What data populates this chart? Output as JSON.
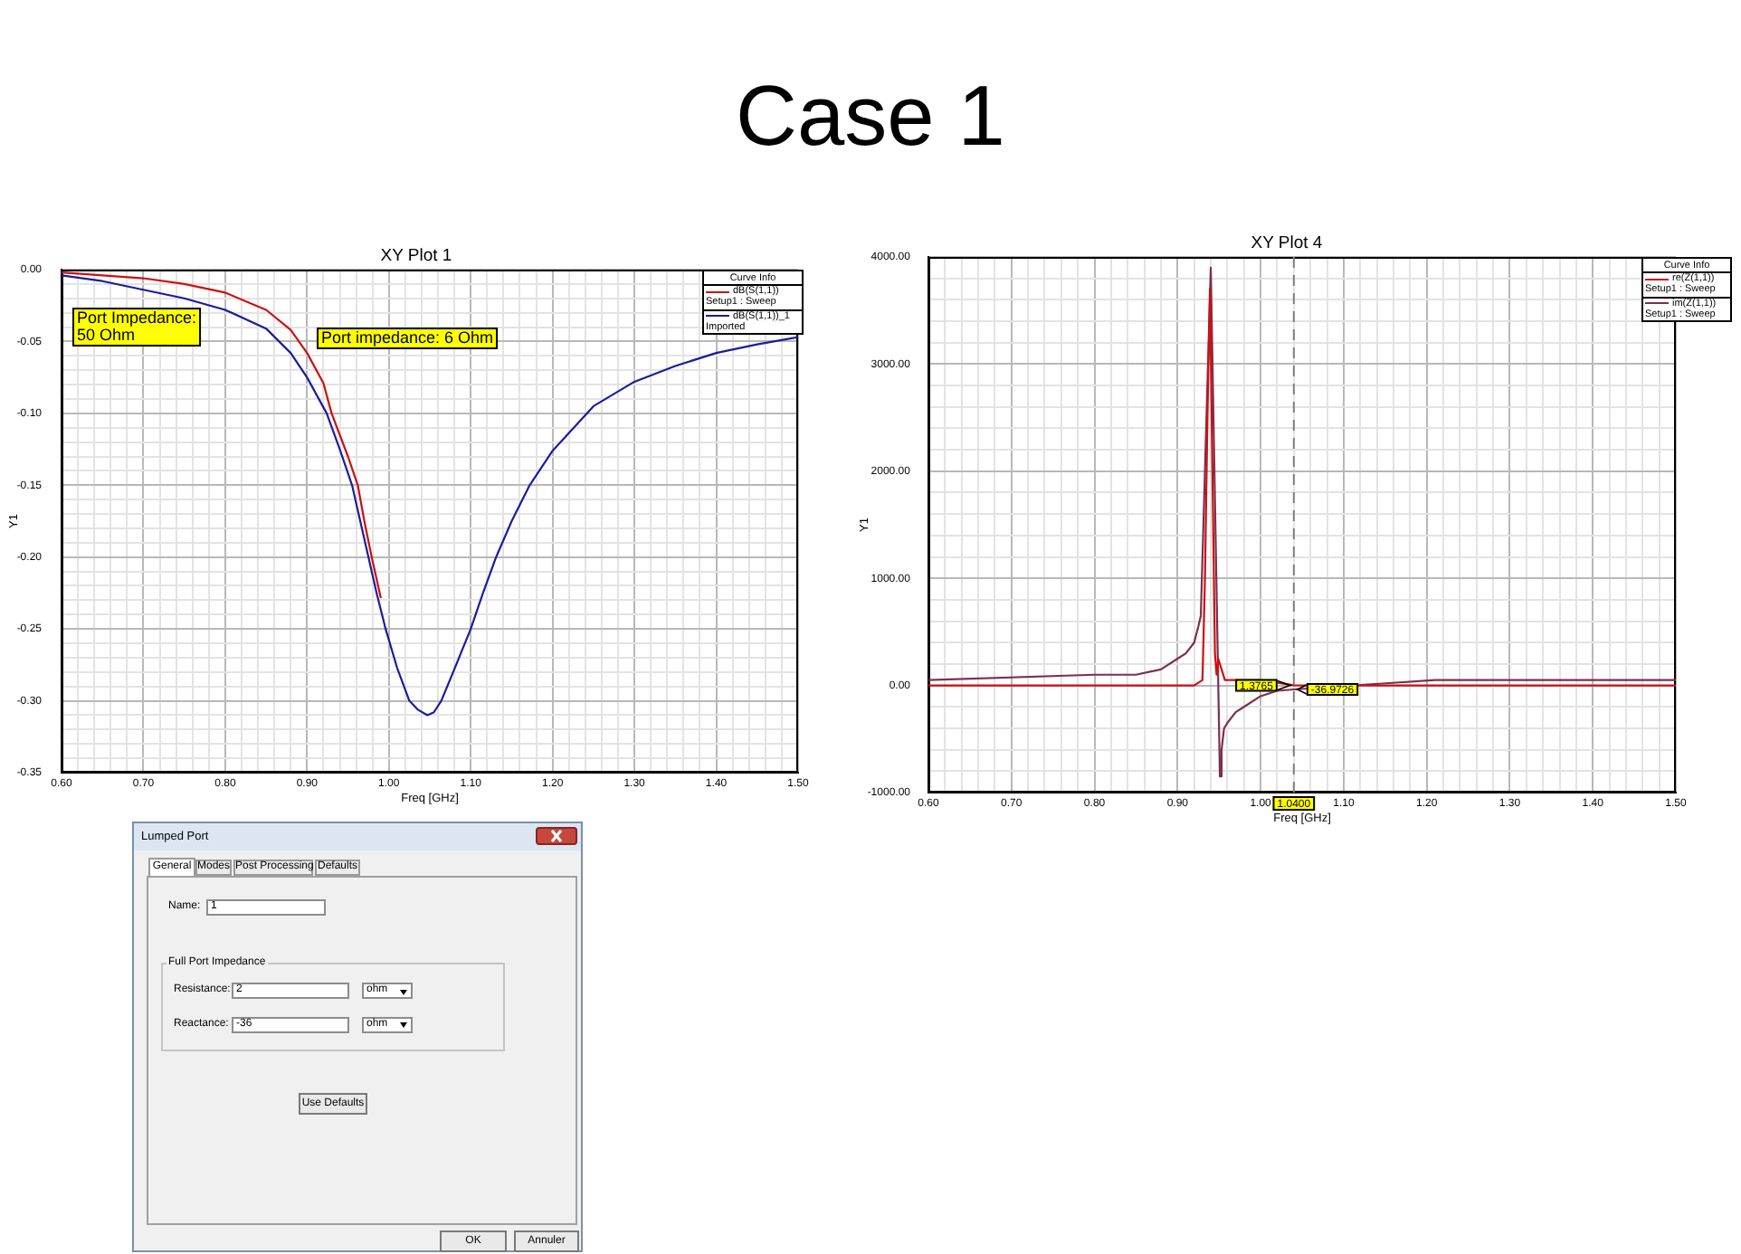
{
  "chart_data": [
    {
      "type": "other",
      "title": "Case 1"
    },
    {
      "type": "line",
      "title": "XY Plot 1",
      "xlabel": "Freq [GHz]",
      "ylabel": "Y1",
      "legend_title": "Curve Info",
      "legend": "top right",
      "grid": true,
      "xlim": [
        0.6,
        1.5
      ],
      "ylim": [
        -0.35,
        0
      ],
      "xticks": [
        {
          "value": 0.6,
          "label": "0.60"
        },
        {
          "value": 0.62,
          "label": null
        },
        {
          "value": 0.64,
          "label": null
        },
        {
          "value": 0.66,
          "label": null
        },
        {
          "value": 0.68,
          "label": null
        },
        {
          "value": 0.7,
          "label": "0.70"
        },
        {
          "value": 0.72,
          "label": null
        },
        {
          "value": 0.74,
          "label": null
        },
        {
          "value": 0.76,
          "label": null
        },
        {
          "value": 0.78,
          "label": null
        },
        {
          "value": 0.8,
          "label": "0.80"
        },
        {
          "value": 0.82,
          "label": null
        },
        {
          "value": 0.84,
          "label": null
        },
        {
          "value": 0.86,
          "label": null
        },
        {
          "value": 0.88,
          "label": null
        },
        {
          "value": 0.9,
          "label": "0.90"
        },
        {
          "value": 0.92,
          "label": null
        },
        {
          "value": 0.94,
          "label": null
        },
        {
          "value": 0.96,
          "label": null
        },
        {
          "value": 0.98,
          "label": null
        },
        {
          "value": 1,
          "label": "1.00"
        },
        {
          "value": 1.02,
          "label": null
        },
        {
          "value": 1.04,
          "label": null
        },
        {
          "value": 1.06,
          "label": null
        },
        {
          "value": 1.08,
          "label": null
        },
        {
          "value": 1.1,
          "label": "1.10"
        },
        {
          "value": 1.12,
          "label": null
        },
        {
          "value": 1.14,
          "label": null
        },
        {
          "value": 1.16,
          "label": null
        },
        {
          "value": 1.18,
          "label": null
        },
        {
          "value": 1.2,
          "label": "1.20"
        },
        {
          "value": 1.22,
          "label": null
        },
        {
          "value": 1.24,
          "label": null
        },
        {
          "value": 1.26,
          "label": null
        },
        {
          "value": 1.28,
          "label": null
        },
        {
          "value": 1.3,
          "label": "1.30"
        },
        {
          "value": 1.32,
          "label": null
        },
        {
          "value": 1.34,
          "label": null
        },
        {
          "value": 1.36,
          "label": null
        },
        {
          "value": 1.38,
          "label": null
        },
        {
          "value": 1.4,
          "label": "1.40"
        },
        {
          "value": 1.42,
          "label": null
        },
        {
          "value": 1.44,
          "label": null
        },
        {
          "value": 1.46,
          "label": null
        },
        {
          "value": 1.48,
          "label": null
        },
        {
          "value": 1.5,
          "label": "1.50"
        }
      ],
      "yticks": [
        {
          "value": -0.35,
          "label": "-0.35"
        },
        {
          "value": -0.34,
          "label": null
        },
        {
          "value": -0.33,
          "label": null
        },
        {
          "value": -0.32,
          "label": null
        },
        {
          "value": -0.31,
          "label": null
        },
        {
          "value": -0.3,
          "label": "-0.30"
        },
        {
          "value": -0.29,
          "label": null
        },
        {
          "value": -0.28,
          "label": null
        },
        {
          "value": -0.27,
          "label": null
        },
        {
          "value": -0.26,
          "label": null
        },
        {
          "value": -0.25,
          "label": "-0.25"
        },
        {
          "value": -0.24,
          "label": null
        },
        {
          "value": -0.23,
          "label": null
        },
        {
          "value": -0.22,
          "label": null
        },
        {
          "value": -0.21,
          "label": null
        },
        {
          "value": -0.2,
          "label": "-0.20"
        },
        {
          "value": -0.19,
          "label": null
        },
        {
          "value": -0.18,
          "label": null
        },
        {
          "value": -0.17,
          "label": null
        },
        {
          "value": -0.16,
          "label": null
        },
        {
          "value": -0.15,
          "label": "-0.15"
        },
        {
          "value": -0.14,
          "label": null
        },
        {
          "value": -0.13,
          "label": null
        },
        {
          "value": -0.12,
          "label": null
        },
        {
          "value": -0.11,
          "label": null
        },
        {
          "value": -0.1,
          "label": "-0.10"
        },
        {
          "value": -0.09,
          "label": null
        },
        {
          "value": -0.08,
          "label": null
        },
        {
          "value": -0.07,
          "label": null
        },
        {
          "value": -0.06,
          "label": null
        },
        {
          "value": -0.05,
          "label": "-0.05"
        },
        {
          "value": -0.04,
          "label": null
        },
        {
          "value": -0.03,
          "label": null
        },
        {
          "value": -0.02,
          "label": null
        },
        {
          "value": -0.01,
          "label": null
        },
        {
          "value": 0,
          "label": "0.00"
        }
      ],
      "series": [
        {
          "name": "dB(S(1,1))\nSetup1 : Sweep",
          "color": "#cc1010",
          "x": [
            0.6,
            0.65,
            0.7,
            0.75,
            0.8,
            0.85,
            0.88,
            0.9,
            0.92,
            0.93,
            0.95,
            0.962,
            0.97,
            0.979,
            0.99
          ],
          "values": [
            -0.002,
            -0.004,
            -0.006,
            -0.01,
            -0.016,
            -0.028,
            -0.042,
            -0.058,
            -0.079,
            -0.1,
            -0.13,
            -0.15,
            -0.175,
            -0.2,
            -0.228
          ]
        },
        {
          "name": "dB(S(1,1))_1\nImported",
          "color": "#1c1c9c",
          "x": [
            0.6,
            0.65,
            0.7,
            0.75,
            0.8,
            0.85,
            0.88,
            0.9,
            0.924,
            0.94,
            0.955,
            0.965,
            0.975,
            0.985,
            0.996,
            1.01,
            1.025,
            1.035,
            1.047,
            1.055,
            1.064,
            1.08,
            1.1,
            1.115,
            1.131,
            1.15,
            1.172,
            1.2,
            1.25,
            1.3,
            1.35,
            1.4,
            1.45,
            1.5
          ],
          "values": [
            -0.004,
            -0.008,
            -0.014,
            -0.02,
            -0.028,
            -0.041,
            -0.058,
            -0.075,
            -0.1,
            -0.125,
            -0.15,
            -0.175,
            -0.2,
            -0.225,
            -0.25,
            -0.277,
            -0.3,
            -0.306,
            -0.31,
            -0.308,
            -0.3,
            -0.278,
            -0.25,
            -0.225,
            -0.2,
            -0.175,
            -0.15,
            -0.126,
            -0.095,
            -0.078,
            -0.067,
            -0.058,
            -0.052,
            -0.047
          ]
        }
      ],
      "annotations": [
        "Port Impedance:\n50 Ohm",
        "Port impedance: 6 Ohm"
      ]
    },
    {
      "type": "line",
      "title": "XY Plot 4",
      "xlabel": "Freq [GHz]",
      "ylabel": "Y1",
      "legend_title": "Curve Info",
      "legend": "top right",
      "grid": true,
      "xlim": [
        0.6,
        1.5
      ],
      "ylim": [
        -1000,
        4000
      ],
      "xticks": [
        {
          "value": 0.6,
          "label": "0.60"
        },
        {
          "value": 0.62,
          "label": null
        },
        {
          "value": 0.64,
          "label": null
        },
        {
          "value": 0.66,
          "label": null
        },
        {
          "value": 0.68,
          "label": null
        },
        {
          "value": 0.7,
          "label": "0.70"
        },
        {
          "value": 0.72,
          "label": null
        },
        {
          "value": 0.74,
          "label": null
        },
        {
          "value": 0.76,
          "label": null
        },
        {
          "value": 0.78,
          "label": null
        },
        {
          "value": 0.8,
          "label": "0.80"
        },
        {
          "value": 0.82,
          "label": null
        },
        {
          "value": 0.84,
          "label": null
        },
        {
          "value": 0.86,
          "label": null
        },
        {
          "value": 0.88,
          "label": null
        },
        {
          "value": 0.9,
          "label": "0.90"
        },
        {
          "value": 0.92,
          "label": null
        },
        {
          "value": 0.94,
          "label": null
        },
        {
          "value": 0.96,
          "label": null
        },
        {
          "value": 0.98,
          "label": null
        },
        {
          "value": 1,
          "label": "1.00"
        },
        {
          "value": 1.02,
          "label": null
        },
        {
          "value": 1.04,
          "label": null
        },
        {
          "value": 1.06,
          "label": null
        },
        {
          "value": 1.08,
          "label": null
        },
        {
          "value": 1.1,
          "label": "1.10"
        },
        {
          "value": 1.12,
          "label": null
        },
        {
          "value": 1.14,
          "label": null
        },
        {
          "value": 1.16,
          "label": null
        },
        {
          "value": 1.18,
          "label": null
        },
        {
          "value": 1.2,
          "label": "1.20"
        },
        {
          "value": 1.22,
          "label": null
        },
        {
          "value": 1.24,
          "label": null
        },
        {
          "value": 1.26,
          "label": null
        },
        {
          "value": 1.28,
          "label": null
        },
        {
          "value": 1.3,
          "label": "1.30"
        },
        {
          "value": 1.32,
          "label": null
        },
        {
          "value": 1.34,
          "label": null
        },
        {
          "value": 1.36,
          "label": null
        },
        {
          "value": 1.38,
          "label": null
        },
        {
          "value": 1.4,
          "label": "1.40"
        },
        {
          "value": 1.42,
          "label": null
        },
        {
          "value": 1.44,
          "label": null
        },
        {
          "value": 1.46,
          "label": null
        },
        {
          "value": 1.48,
          "label": null
        },
        {
          "value": 1.5,
          "label": "1.50"
        }
      ],
      "yticks": [
        {
          "value": -1000,
          "label": "-1000.00"
        },
        {
          "value": -800,
          "label": null
        },
        {
          "value": -600,
          "label": null
        },
        {
          "value": -400,
          "label": null
        },
        {
          "value": -200,
          "label": null
        },
        {
          "value": 0,
          "label": "0.00"
        },
        {
          "value": 200,
          "label": null
        },
        {
          "value": 400,
          "label": null
        },
        {
          "value": 600,
          "label": null
        },
        {
          "value": 800,
          "label": null
        },
        {
          "value": 1000,
          "label": "1000.00"
        },
        {
          "value": 1200,
          "label": null
        },
        {
          "value": 1400,
          "label": null
        },
        {
          "value": 1600,
          "label": null
        },
        {
          "value": 1800,
          "label": null
        },
        {
          "value": 2000,
          "label": "2000.00"
        },
        {
          "value": 2200,
          "label": null
        },
        {
          "value": 2400,
          "label": null
        },
        {
          "value": 2600,
          "label": null
        },
        {
          "value": 2800,
          "label": null
        },
        {
          "value": 3000,
          "label": "3000.00"
        },
        {
          "value": 3200,
          "label": null
        },
        {
          "value": 3400,
          "label": null
        },
        {
          "value": 3600,
          "label": null
        },
        {
          "value": 3800,
          "label": null
        },
        {
          "value": 4000,
          "label": "4000.00"
        }
      ],
      "series": [
        {
          "name": "re(Z(1,1))\nSetup1 : Sweep",
          "color": "#cc1010",
          "x": [
            0.6,
            0.92,
            0.93,
            0.933,
            0.936,
            0.939,
            0.942,
            0.945,
            0.947,
            0.949,
            0.957,
            1.0,
            1.04,
            1.2,
            1.5
          ],
          "values": [
            0,
            0,
            50,
            1000,
            2500,
            3700,
            2000,
            300,
            100,
            250,
            50,
            50,
            1.3765,
            0,
            0
          ]
        },
        {
          "name": "im(Z(1,1))\nSetup1 : Sweep",
          "color": "#7b3050",
          "x": [
            0.6,
            0.8,
            0.85,
            0.88,
            0.9,
            0.91,
            0.92,
            0.925,
            0.928,
            0.94,
            0.951,
            0.953,
            0.956,
            0.96,
            0.97,
            0.98,
            1.0,
            1.02,
            1.04,
            1.21,
            1.5
          ],
          "values": [
            50,
            100,
            100,
            150,
            250,
            300,
            400,
            550,
            650,
            3900,
            -850,
            -600,
            -400,
            -350,
            -250,
            -200,
            -100,
            -50,
            -36.9726,
            50,
            50
          ]
        }
      ],
      "ref_lines": [
        {
          "axis": "x",
          "value": 1.04,
          "label": "1.0400",
          "color": "#808080",
          "line_style": "dashed"
        }
      ],
      "annotations": [
        {
          "text": "1.3765",
          "x": 1.04,
          "y": 1.3765
        },
        {
          "text": "-36.9726",
          "x": 1.04,
          "y": -36.9726
        }
      ]
    },
    {
      "type": "other",
      "title": "Lumped Port",
      "annotations": [
        "General",
        "Modes",
        "Post Processing",
        "Defaults",
        "Name:",
        "1",
        "Full Port Impedance",
        "Resistance:",
        "2",
        "ohm",
        "Reactance:",
        "-36",
        "ohm",
        "Use Defaults",
        "OK",
        "Annuler"
      ]
    }
  ]
}
